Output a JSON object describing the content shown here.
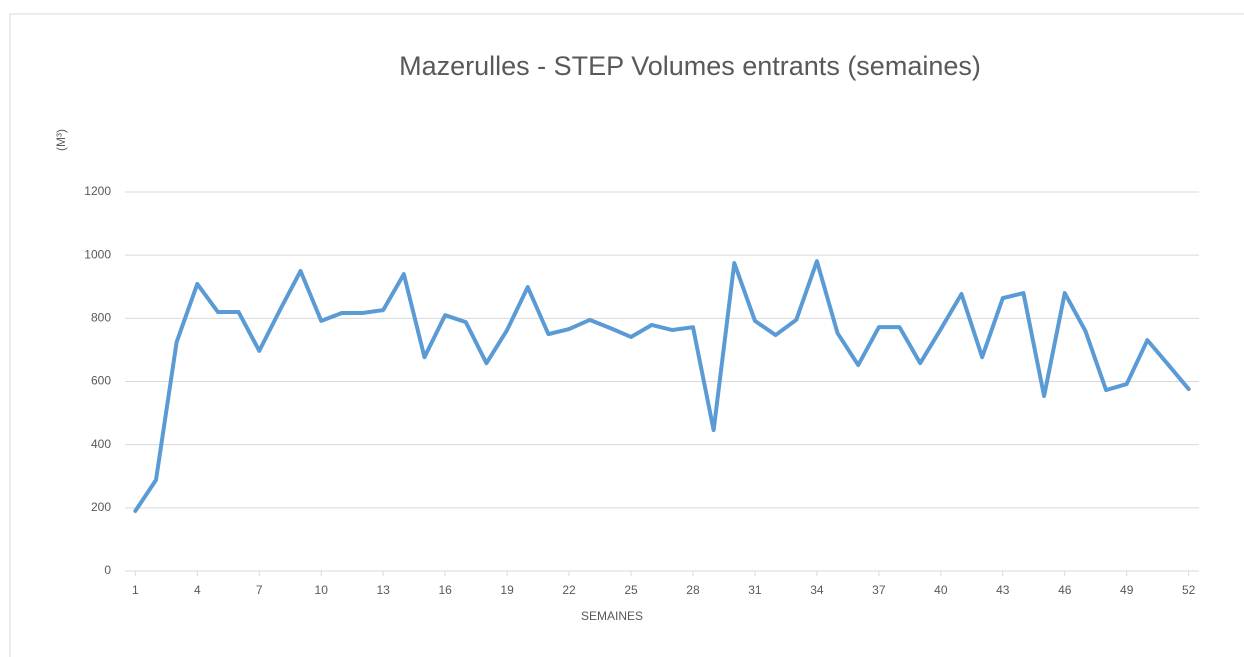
{
  "chart_data": {
    "type": "line",
    "title": "Mazerulles - STEP Volumes entrants (semaines)",
    "y_label": "(M³)",
    "x_label": "SEMAINES",
    "x": [
      1,
      2,
      3,
      4,
      5,
      6,
      7,
      8,
      9,
      10,
      11,
      12,
      13,
      14,
      15,
      16,
      17,
      18,
      19,
      20,
      21,
      22,
      23,
      24,
      25,
      26,
      27,
      28,
      29,
      30,
      31,
      32,
      33,
      34,
      35,
      36,
      37,
      38,
      39,
      40,
      41,
      42,
      43,
      44,
      45,
      46,
      47,
      48,
      49,
      50,
      51,
      52
    ],
    "series": [
      {
        "name": "Volumes entrants",
        "color": "#5b9bd5",
        "values": [
          190,
          288,
          725,
          909,
          820,
          820,
          697,
          826,
          950,
          792,
          817,
          817,
          826,
          940,
          677,
          810,
          788,
          658,
          763,
          899,
          750,
          766,
          795,
          769,
          741,
          779,
          763,
          772,
          446,
          975,
          792,
          747,
          795,
          981,
          753,
          652,
          772,
          772,
          658,
          766,
          877,
          677,
          864,
          880,
          554,
          880,
          760,
          573,
          592,
          731,
          654,
          576
        ]
      }
    ],
    "xlim": [
      0.5,
      52.5
    ],
    "xticks": [
      1,
      4,
      7,
      10,
      13,
      16,
      19,
      22,
      25,
      28,
      31,
      34,
      37,
      40,
      43,
      46,
      49,
      52
    ],
    "ylim": [
      0,
      1200
    ],
    "yticks": [
      0,
      200,
      400,
      600,
      800,
      1000,
      1200
    ],
    "grid": true
  }
}
